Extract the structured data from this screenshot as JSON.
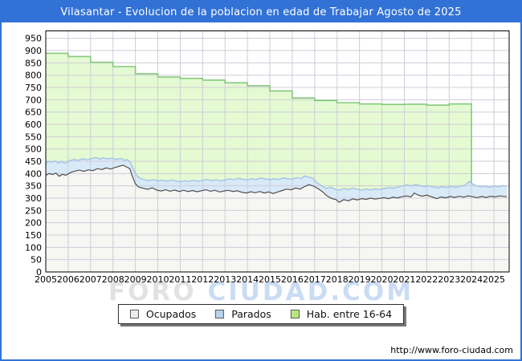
{
  "header": {
    "title": "Vilasantar - Evolucion de la poblacion en edad de Trabajar Agosto de 2025"
  },
  "watermark": {
    "left": "FORO",
    "right": "CIUDAD.COM"
  },
  "legend": {
    "items": [
      {
        "label": "Ocupados",
        "swatch": "#ededed"
      },
      {
        "label": "Parados",
        "swatch": "#b9d2ee"
      },
      {
        "label": "Hab. entre 16-64",
        "swatch": "#b9e684"
      }
    ]
  },
  "footer": {
    "url": "http://www.foro-ciudad.com"
  },
  "colors": {
    "frame": "#3272d6",
    "grid": "#cfccd8",
    "plot_border": "#000000",
    "hab_fill": "#e4fad2",
    "hab_line": "#85c87e",
    "parados_fill": "#d8e9f8",
    "parados_line": "#a3c3e3",
    "ocupados_fill": "#f6f6f3",
    "ocupados_line": "#4f4f4f"
  },
  "chart_data": {
    "type": "area",
    "title": "Vilasantar - Evolucion de la poblacion en edad de Trabajar Agosto de 2025",
    "xlabel": "",
    "ylabel": "",
    "xlim": [
      2005,
      2025.68
    ],
    "ylim": [
      0,
      980
    ],
    "grid": true,
    "legend_position": "bottom",
    "x_ticks": [
      2005,
      2006,
      2007,
      2008,
      2009,
      2010,
      2011,
      2012,
      2013,
      2014,
      2015,
      2016,
      2017,
      2018,
      2019,
      2020,
      2021,
      2022,
      2023,
      2024,
      2025
    ],
    "y_ticks": [
      0,
      50,
      100,
      150,
      200,
      250,
      300,
      350,
      400,
      450,
      500,
      550,
      600,
      650,
      700,
      750,
      800,
      850,
      900,
      950
    ],
    "series": [
      {
        "name": "Hab. entre 16-64",
        "mode": "step",
        "years": [
          2005,
          2006,
          2007,
          2008,
          2009,
          2010,
          2011,
          2012,
          2013,
          2014,
          2015,
          2016,
          2017,
          2018,
          2019,
          2020,
          2021,
          2022,
          2023
        ],
        "values": [
          889,
          876,
          852,
          835,
          806,
          792,
          787,
          780,
          769,
          757,
          736,
          707,
          697,
          688,
          683,
          681,
          682,
          678,
          683
        ],
        "end_x": 2024,
        "end_drop_to": 358
      },
      {
        "name": "Parados (borde superior: Ocupados + Parados)",
        "mode": "line",
        "points": [
          [
            2005.0,
            436
          ],
          [
            2005.1,
            450
          ],
          [
            2005.25,
            446
          ],
          [
            2005.4,
            451
          ],
          [
            2005.55,
            443
          ],
          [
            2005.7,
            449
          ],
          [
            2005.85,
            442
          ],
          [
            2006.05,
            452
          ],
          [
            2006.25,
            457
          ],
          [
            2006.45,
            454
          ],
          [
            2006.65,
            460
          ],
          [
            2006.85,
            456
          ],
          [
            2007.05,
            461
          ],
          [
            2007.25,
            466
          ],
          [
            2007.4,
            459
          ],
          [
            2007.55,
            464
          ],
          [
            2007.75,
            460
          ],
          [
            2007.95,
            462
          ],
          [
            2008.15,
            458
          ],
          [
            2008.35,
            461
          ],
          [
            2008.5,
            454
          ],
          [
            2008.65,
            457
          ],
          [
            2008.8,
            442
          ],
          [
            2008.9,
            418
          ],
          [
            2009.05,
            392
          ],
          [
            2009.2,
            381
          ],
          [
            2009.4,
            375
          ],
          [
            2009.6,
            371
          ],
          [
            2009.8,
            376
          ],
          [
            2010.0,
            370
          ],
          [
            2010.2,
            373
          ],
          [
            2010.4,
            369
          ],
          [
            2010.6,
            374
          ],
          [
            2010.8,
            370
          ],
          [
            2011.0,
            367
          ],
          [
            2011.2,
            371
          ],
          [
            2011.4,
            368
          ],
          [
            2011.6,
            373
          ],
          [
            2011.8,
            369
          ],
          [
            2012.0,
            372
          ],
          [
            2012.2,
            376
          ],
          [
            2012.4,
            371
          ],
          [
            2012.6,
            375
          ],
          [
            2012.8,
            370
          ],
          [
            2013.0,
            374
          ],
          [
            2013.2,
            379
          ],
          [
            2013.4,
            375
          ],
          [
            2013.6,
            381
          ],
          [
            2013.8,
            377
          ],
          [
            2014.0,
            374
          ],
          [
            2014.2,
            379
          ],
          [
            2014.4,
            376
          ],
          [
            2014.6,
            382
          ],
          [
            2014.8,
            378
          ],
          [
            2015.0,
            375
          ],
          [
            2015.2,
            379
          ],
          [
            2015.4,
            376
          ],
          [
            2015.6,
            382
          ],
          [
            2015.8,
            379
          ],
          [
            2016.0,
            377
          ],
          [
            2016.2,
            384
          ],
          [
            2016.4,
            380
          ],
          [
            2016.55,
            390
          ],
          [
            2016.7,
            386
          ],
          [
            2016.9,
            382
          ],
          [
            2017.1,
            363
          ],
          [
            2017.3,
            351
          ],
          [
            2017.5,
            339
          ],
          [
            2017.7,
            344
          ],
          [
            2017.9,
            337
          ],
          [
            2018.1,
            332
          ],
          [
            2018.3,
            339
          ],
          [
            2018.5,
            335
          ],
          [
            2018.7,
            341
          ],
          [
            2018.9,
            336
          ],
          [
            2019.1,
            333
          ],
          [
            2019.3,
            337
          ],
          [
            2019.5,
            333
          ],
          [
            2019.7,
            338
          ],
          [
            2019.9,
            335
          ],
          [
            2020.1,
            339
          ],
          [
            2020.3,
            343
          ],
          [
            2020.5,
            340
          ],
          [
            2020.7,
            345
          ],
          [
            2020.9,
            349
          ],
          [
            2021.1,
            354
          ],
          [
            2021.3,
            350
          ],
          [
            2021.5,
            356
          ],
          [
            2021.7,
            351
          ],
          [
            2021.9,
            347
          ],
          [
            2022.1,
            351
          ],
          [
            2022.3,
            346
          ],
          [
            2022.5,
            342
          ],
          [
            2022.7,
            347
          ],
          [
            2022.9,
            343
          ],
          [
            2023.1,
            348
          ],
          [
            2023.3,
            344
          ],
          [
            2023.5,
            349
          ],
          [
            2023.7,
            352
          ],
          [
            2023.9,
            368
          ],
          [
            2024.05,
            358
          ],
          [
            2024.2,
            351
          ],
          [
            2024.4,
            346
          ],
          [
            2024.6,
            349
          ],
          [
            2024.8,
            344
          ],
          [
            2025.0,
            350
          ],
          [
            2025.2,
            346
          ],
          [
            2025.4,
            351
          ],
          [
            2025.58,
            348
          ]
        ]
      },
      {
        "name": "Ocupados",
        "mode": "line",
        "points": [
          [
            2005.0,
            393
          ],
          [
            2005.15,
            400
          ],
          [
            2005.3,
            396
          ],
          [
            2005.45,
            402
          ],
          [
            2005.6,
            389
          ],
          [
            2005.75,
            397
          ],
          [
            2005.9,
            393
          ],
          [
            2006.1,
            404
          ],
          [
            2006.3,
            410
          ],
          [
            2006.5,
            414
          ],
          [
            2006.7,
            409
          ],
          [
            2006.9,
            415
          ],
          [
            2007.1,
            412
          ],
          [
            2007.3,
            420
          ],
          [
            2007.5,
            416
          ],
          [
            2007.7,
            423
          ],
          [
            2007.9,
            418
          ],
          [
            2008.1,
            425
          ],
          [
            2008.3,
            430
          ],
          [
            2008.45,
            434
          ],
          [
            2008.6,
            427
          ],
          [
            2008.75,
            420
          ],
          [
            2008.85,
            392
          ],
          [
            2009.0,
            358
          ],
          [
            2009.15,
            345
          ],
          [
            2009.35,
            340
          ],
          [
            2009.55,
            336
          ],
          [
            2009.75,
            342
          ],
          [
            2009.95,
            333
          ],
          [
            2010.15,
            329
          ],
          [
            2010.35,
            334
          ],
          [
            2010.55,
            328
          ],
          [
            2010.75,
            333
          ],
          [
            2010.95,
            327
          ],
          [
            2011.15,
            332
          ],
          [
            2011.35,
            327
          ],
          [
            2011.55,
            331
          ],
          [
            2011.75,
            326
          ],
          [
            2011.95,
            330
          ],
          [
            2012.15,
            334
          ],
          [
            2012.35,
            328
          ],
          [
            2012.55,
            332
          ],
          [
            2012.75,
            325
          ],
          [
            2012.95,
            329
          ],
          [
            2013.15,
            332
          ],
          [
            2013.35,
            327
          ],
          [
            2013.55,
            330
          ],
          [
            2013.75,
            324
          ],
          [
            2013.95,
            321
          ],
          [
            2014.15,
            326
          ],
          [
            2014.35,
            322
          ],
          [
            2014.55,
            327
          ],
          [
            2014.75,
            321
          ],
          [
            2014.95,
            325
          ],
          [
            2015.15,
            319
          ],
          [
            2015.35,
            325
          ],
          [
            2015.55,
            331
          ],
          [
            2015.75,
            337
          ],
          [
            2015.95,
            334
          ],
          [
            2016.15,
            341
          ],
          [
            2016.35,
            337
          ],
          [
            2016.55,
            347
          ],
          [
            2016.75,
            355
          ],
          [
            2016.95,
            349
          ],
          [
            2017.15,
            339
          ],
          [
            2017.35,
            326
          ],
          [
            2017.55,
            309
          ],
          [
            2017.75,
            299
          ],
          [
            2017.95,
            294
          ],
          [
            2018.1,
            283
          ],
          [
            2018.3,
            294
          ],
          [
            2018.5,
            289
          ],
          [
            2018.7,
            297
          ],
          [
            2018.9,
            293
          ],
          [
            2019.1,
            298
          ],
          [
            2019.3,
            295
          ],
          [
            2019.5,
            300
          ],
          [
            2019.7,
            296
          ],
          [
            2019.9,
            299
          ],
          [
            2020.1,
            302
          ],
          [
            2020.3,
            298
          ],
          [
            2020.5,
            304
          ],
          [
            2020.7,
            301
          ],
          [
            2020.9,
            306
          ],
          [
            2021.1,
            309
          ],
          [
            2021.3,
            305
          ],
          [
            2021.45,
            321
          ],
          [
            2021.6,
            313
          ],
          [
            2021.8,
            308
          ],
          [
            2022.0,
            312
          ],
          [
            2022.2,
            306
          ],
          [
            2022.45,
            298
          ],
          [
            2022.65,
            305
          ],
          [
            2022.85,
            301
          ],
          [
            2023.05,
            307
          ],
          [
            2023.25,
            303
          ],
          [
            2023.45,
            308
          ],
          [
            2023.65,
            304
          ],
          [
            2023.85,
            309
          ],
          [
            2024.05,
            306
          ],
          [
            2024.25,
            302
          ],
          [
            2024.45,
            307
          ],
          [
            2024.65,
            303
          ],
          [
            2024.85,
            308
          ],
          [
            2025.05,
            305
          ],
          [
            2025.25,
            309
          ],
          [
            2025.58,
            306
          ]
        ]
      }
    ]
  }
}
